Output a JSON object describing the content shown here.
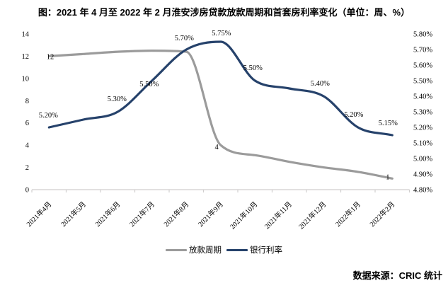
{
  "title": "图：2021 年 4 月至 2022 年 2 月淮安涉房贷款放款周期和首套房利率变化（单位：周、%）",
  "source": "数据来源：CRIC 统计",
  "colors": {
    "loan_cycle_gray": "#9b9b9b",
    "bank_rate_navy": "#26426b",
    "axis_line": "#d0cece"
  },
  "chart_data": {
    "type": "line",
    "smoothed": true,
    "grid": false,
    "legend_position": "bottom",
    "categories": [
      "2021年4月",
      "2021年5月",
      "2021年6月",
      "2021年7月",
      "2021年8月",
      "2021年9月",
      "2021年10月",
      "2021年11月",
      "2021年12月",
      "2022年1月",
      "2022年2月"
    ],
    "left_axis": {
      "min": 0,
      "max": 14,
      "step": 2,
      "ticks": [
        "0",
        "2",
        "4",
        "6",
        "8",
        "10",
        "12",
        "14"
      ]
    },
    "right_axis": {
      "min": 4.8,
      "max": 5.8,
      "step": 0.1,
      "ticks_top_to_bottom": [
        "5.80%",
        "5.70%",
        "5.60%",
        "5.50%",
        "5.40%",
        "5.30%",
        "5.20%",
        "5.10%",
        "5.00%",
        "4.90%",
        "4.80%"
      ]
    },
    "series": [
      {
        "name": "放款周期",
        "axis": "left",
        "color": "#9b9b9b",
        "values": [
          12,
          12.2,
          12.4,
          12.5,
          12.4,
          4,
          3.1,
          2.5,
          2,
          1.6,
          1
        ],
        "point_labels": [
          {
            "i": 0,
            "t": "12"
          },
          {
            "i": 5,
            "t": "4"
          },
          {
            "i": 10,
            "t": "1"
          }
        ]
      },
      {
        "name": "银行利率",
        "axis": "right",
        "color": "#26426b",
        "values": [
          5.2,
          5.25,
          5.3,
          5.5,
          5.7,
          5.75,
          5.5,
          5.45,
          5.4,
          5.2,
          5.15
        ],
        "point_labels": [
          {
            "i": 0,
            "t": "5.20%"
          },
          {
            "i": 2,
            "t": "5.30%"
          },
          {
            "i": 3,
            "t": "5.50%"
          },
          {
            "i": 4,
            "t": "5.70%"
          },
          {
            "i": 5,
            "t": "5.75%"
          },
          {
            "i": 6,
            "t": "5.50%"
          },
          {
            "i": 8,
            "t": "5.40%"
          },
          {
            "i": 9,
            "t": "5.20%"
          },
          {
            "i": 10,
            "t": "5.15%"
          }
        ]
      }
    ]
  }
}
